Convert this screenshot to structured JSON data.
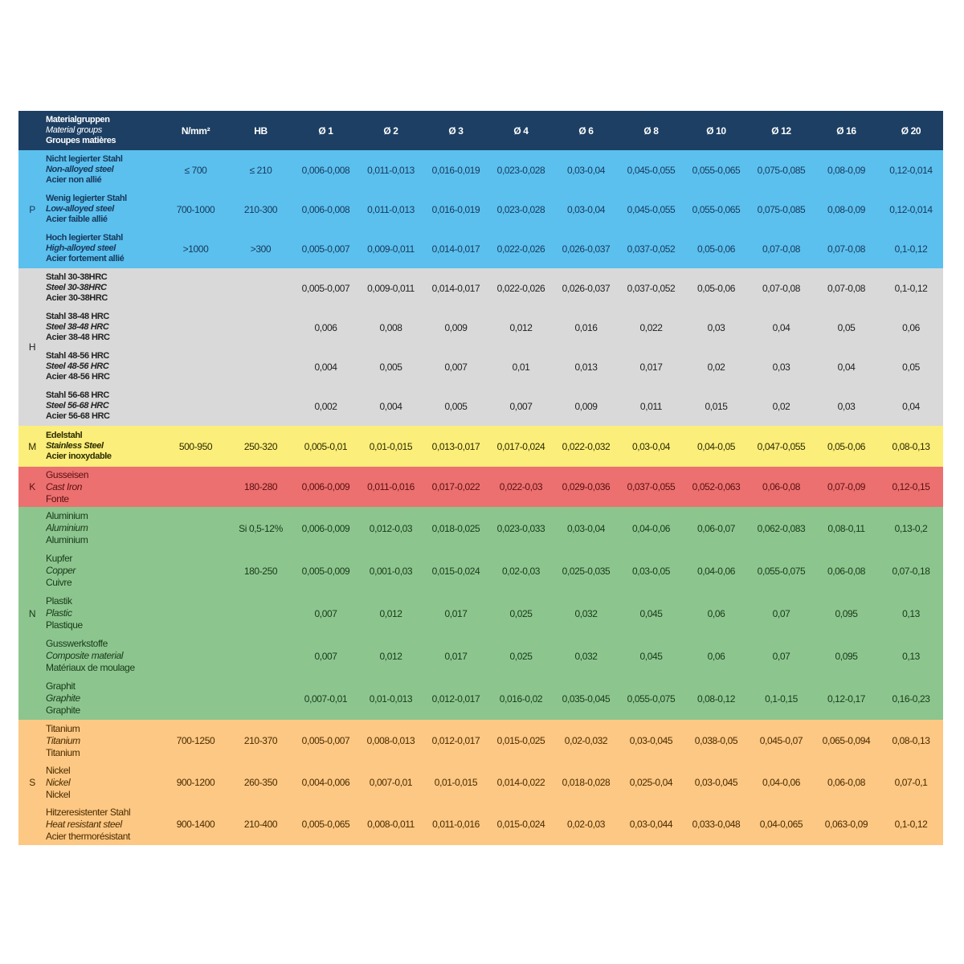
{
  "header": {
    "material_group": [
      "Materialgruppen",
      "Material groups",
      "Groupes matières"
    ],
    "columns": [
      "N/mm²",
      "HB",
      "Ø 1",
      "Ø 2",
      "Ø 3",
      "Ø 4",
      "Ø 6",
      "Ø 8",
      "Ø 10",
      "Ø 12",
      "Ø 16",
      "Ø 20"
    ]
  },
  "groups": [
    {
      "code": "P",
      "color": "#5bc0ee",
      "bold": true,
      "rows": [
        {
          "names": [
            "Nicht legierter Stahl",
            "Non-alloyed steel",
            "Acier non allié"
          ],
          "n": "≤ 700",
          "hb": "≤ 210",
          "values": [
            "0,006-0,008",
            "0,011-0,013",
            "0,016-0,019",
            "0,023-0,028",
            "0,03-0,04",
            "0,045-0,055",
            "0,055-0,065",
            "0,075-0,085",
            "0,08-0,09",
            "0,12-0,014"
          ]
        },
        {
          "names": [
            "Wenig legierter Stahl",
            "Low-alloyed steel",
            "Acier faible allié"
          ],
          "n": "700-1000",
          "hb": "210-300",
          "values": [
            "0,006-0,008",
            "0,011-0,013",
            "0,016-0,019",
            "0,023-0,028",
            "0,03-0,04",
            "0,045-0,055",
            "0,055-0,065",
            "0,075-0,085",
            "0,08-0,09",
            "0,12-0,014"
          ]
        },
        {
          "names": [
            "Hoch legierter Stahl",
            "High-alloyed steel",
            "Acier fortement allié"
          ],
          "n": ">1000",
          "hb": ">300",
          "values": [
            "0,005-0,007",
            "0,009-0,011",
            "0,014-0,017",
            "0,022-0,026",
            "0,026-0,037",
            "0,037-0,052",
            "0,05-0,06",
            "0,07-0,08",
            "0,07-0,08",
            "0,1-0,12"
          ]
        }
      ]
    },
    {
      "code": "H",
      "color": "#d9d9d9",
      "bold": true,
      "rows": [
        {
          "names": [
            "Stahl 30-38HRC",
            "Steel 30-38HRC",
            "Acier 30-38HRC"
          ],
          "n": "",
          "hb": "",
          "values": [
            "0,005-0,007",
            "0,009-0,011",
            "0,014-0,017",
            "0,022-0,026",
            "0,026-0,037",
            "0,037-0,052",
            "0,05-0,06",
            "0,07-0,08",
            "0,07-0,08",
            "0,1-0,12"
          ]
        },
        {
          "names": [
            "Stahl 38-48 HRC",
            "Steel 38-48 HRC",
            "Acier 38-48 HRC"
          ],
          "n": "",
          "hb": "",
          "values": [
            "0,006",
            "0,008",
            "0,009",
            "0,012",
            "0,016",
            "0,022",
            "0,03",
            "0,04",
            "0,05",
            "0,06"
          ]
        },
        {
          "names": [
            "Stahl 48-56 HRC",
            "Steel 48-56 HRC",
            "Acier 48-56 HRC"
          ],
          "n": "",
          "hb": "",
          "values": [
            "0,004",
            "0,005",
            "0,007",
            "0,01",
            "0,013",
            "0,017",
            "0,02",
            "0,03",
            "0,04",
            "0,05"
          ]
        },
        {
          "names": [
            "Stahl 56-68 HRC",
            "Steel 56-68 HRC",
            "Acier 56-68 HRC"
          ],
          "n": "",
          "hb": "",
          "values": [
            "0,002",
            "0,004",
            "0,005",
            "0,007",
            "0,009",
            "0,011",
            "0,015",
            "0,02",
            "0,03",
            "0,04"
          ]
        }
      ]
    },
    {
      "code": "M",
      "color": "#fcee7a",
      "bold": true,
      "rows": [
        {
          "names": [
            "Edelstahl",
            "Stainless Steel",
            "Acier inoxydable"
          ],
          "n": "500-950",
          "hb": "250-320",
          "values": [
            "0,005-0,01",
            "0,01-0,015",
            "0,013-0,017",
            "0,017-0,024",
            "0,022-0,032",
            "0,03-0,04",
            "0,04-0,05",
            "0,047-0,055",
            "0,05-0,06",
            "0,08-0,13"
          ]
        }
      ]
    },
    {
      "code": "K",
      "color": "#ec7070",
      "bold": false,
      "rows": [
        {
          "names": [
            "Gusseisen",
            "Cast Iron",
            "Fonte"
          ],
          "n": "",
          "hb": "180-280",
          "values": [
            "0,006-0,009",
            "0,011-0,016",
            "0,017-0,022",
            "0,022-0,03",
            "0,029-0,036",
            "0,037-0,055",
            "0,052-0,063",
            "0,06-0,08",
            "0,07-0,09",
            "0,12-0,15"
          ]
        }
      ]
    },
    {
      "code": "N",
      "color": "#8dc58f",
      "bold": false,
      "rows": [
        {
          "names": [
            "Aluminium",
            "Aluminium",
            "Aluminium"
          ],
          "n": "",
          "hb": "Si 0,5-12%",
          "values": [
            "0,006-0,009",
            "0,012-0,03",
            "0,018-0,025",
            "0,023-0,033",
            "0,03-0,04",
            "0,04-0,06",
            "0,06-0,07",
            "0,062-0,083",
            "0,08-0,11",
            "0,13-0,2"
          ]
        },
        {
          "names": [
            "Kupfer",
            "Copper",
            "Cuivre"
          ],
          "n": "",
          "hb": "180-250",
          "values": [
            "0,005-0,009",
            "0,001-0,03",
            "0,015-0,024",
            "0,02-0,03",
            "0,025-0,035",
            "0,03-0,05",
            "0,04-0,06",
            "0,055-0,075",
            "0,06-0,08",
            "0,07-0,18"
          ]
        },
        {
          "names": [
            "Plastik",
            "Plastic",
            "Plastique"
          ],
          "n": "",
          "hb": "",
          "values": [
            "0,007",
            "0,012",
            "0,017",
            "0,025",
            "0,032",
            "0,045",
            "0,06",
            "0,07",
            "0,095",
            "0,13"
          ]
        },
        {
          "names": [
            "Gusswerkstoffe",
            "Composite material",
            "Matériaux de moulage"
          ],
          "n": "",
          "hb": "",
          "values": [
            "0,007",
            "0,012",
            "0,017",
            "0,025",
            "0,032",
            "0,045",
            "0,06",
            "0,07",
            "0,095",
            "0,13"
          ]
        },
        {
          "names": [
            "Graphit",
            "Graphite",
            "Graphite"
          ],
          "n": "",
          "hb": "",
          "values": [
            "0,007-0,01",
            "0,01-0,013",
            "0,012-0,017",
            "0,016-0,02",
            "0,035-0,045",
            "0,055-0,075",
            "0,08-0,12",
            "0,1-0,15",
            "0,12-0,17",
            "0,16-0,23"
          ]
        }
      ]
    },
    {
      "code": "S",
      "color": "#fcc883",
      "bold": false,
      "rows": [
        {
          "names": [
            "Titanium",
            "Titanium",
            "Titanium"
          ],
          "n": "700-1250",
          "hb": "210-370",
          "values": [
            "0,005-0,007",
            "0,008-0,013",
            "0,012-0,017",
            "0,015-0,025",
            "0,02-0,032",
            "0,03-0,045",
            "0,038-0,05",
            "0,045-0,07",
            "0,065-0,094",
            "0,08-0,13"
          ]
        },
        {
          "names": [
            "Nickel",
            "Nickel",
            "Nickel"
          ],
          "n": "900-1200",
          "hb": "260-350",
          "values": [
            "0,004-0,006",
            "0,007-0,01",
            "0,01-0,015",
            "0,014-0,022",
            "0,018-0,028",
            "0,025-0,04",
            "0,03-0,045",
            "0,04-0,06",
            "0,06-0,08",
            "0,07-0,1"
          ]
        },
        {
          "names": [
            "Hitzeresistenter Stahl",
            "Heat resistant steel",
            "Acier thermorésistant"
          ],
          "n": "900-1400",
          "hb": "210-400",
          "values": [
            "0,005-0,065",
            "0,008-0,011",
            "0,011-0,016",
            "0,015-0,024",
            "0,02-0,03",
            "0,03-0,044",
            "0,033-0,048",
            "0,04-0,065",
            "0,063-0,09",
            "0,1-0,12"
          ]
        }
      ]
    }
  ]
}
